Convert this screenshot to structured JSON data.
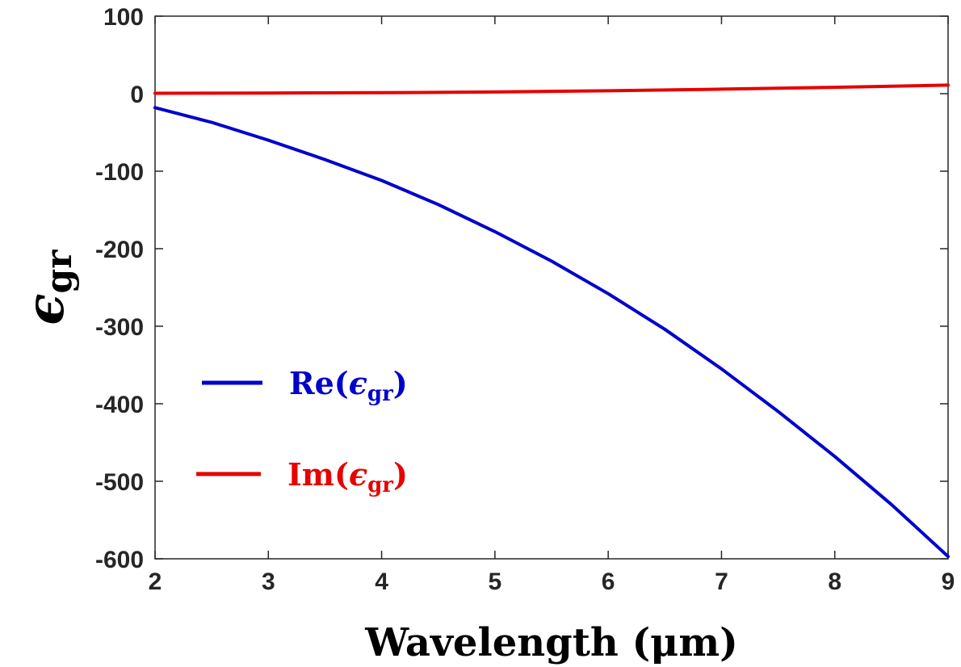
{
  "chart_data": {
    "type": "line",
    "title": "",
    "xlabel": "Wavelength (μm)",
    "ylabel": {
      "symbol": "ϵ",
      "subscript": "gr"
    },
    "xlim": [
      2,
      9
    ],
    "ylim": [
      -600,
      100
    ],
    "xticks": [
      2,
      3,
      4,
      5,
      6,
      7,
      8,
      9
    ],
    "yticks": [
      100,
      0,
      -100,
      -200,
      -300,
      -400,
      -500,
      -600
    ],
    "grid": false,
    "legend_position": "lower-left",
    "series": [
      {
        "name": {
          "prefix": "Re(",
          "symbol": "ϵ",
          "subscript": "gr",
          "suffix": ")"
        },
        "color": "#0000cc",
        "x": [
          2,
          2.5,
          3,
          3.5,
          4,
          4.5,
          5,
          5.5,
          6,
          6.5,
          7,
          7.5,
          8,
          8.5,
          9
        ],
        "values": [
          -18,
          -37,
          -60,
          -85,
          -112,
          -143,
          -178,
          -216,
          -258,
          -304,
          -355,
          -410,
          -468,
          -530,
          -597
        ]
      },
      {
        "name": {
          "prefix": "Im(",
          "symbol": "ϵ",
          "subscript": "gr",
          "suffix": ")"
        },
        "color": "#e60000",
        "x": [
          2,
          3,
          4,
          5,
          6,
          7,
          8,
          9
        ],
        "values": [
          0.5,
          0.8,
          1.3,
          2.2,
          3.8,
          5.8,
          8.2,
          11
        ]
      }
    ]
  }
}
